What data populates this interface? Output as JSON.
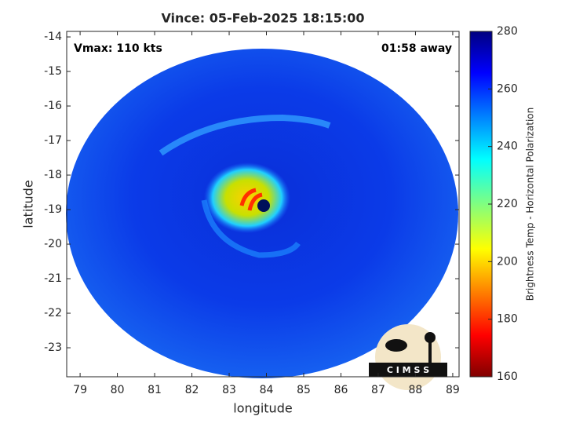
{
  "chart_data": {
    "type": "image",
    "title": "Vince: 05-Feb-2025 18:15:00",
    "xlabel": "longitude",
    "ylabel": "latitude",
    "xlim": [
      78.64,
      89.17
    ],
    "ylim": [
      -23.84,
      -13.84
    ],
    "xticks": [
      79,
      80,
      81,
      82,
      83,
      84,
      85,
      86,
      87,
      88,
      89
    ],
    "yticks": [
      -14,
      -15,
      -16,
      -17,
      -18,
      -19,
      -20,
      -21,
      -22,
      -23
    ],
    "annotations": [
      "Vmax: 110 kts",
      "01:58 away"
    ],
    "colorbar": {
      "label": "Brightness Temp - Horizontal Polarization",
      "clim": [
        160,
        280
      ],
      "ticks": [
        160,
        180,
        200,
        220,
        240,
        260,
        280
      ]
    },
    "logo_text": "C I M S S"
  }
}
